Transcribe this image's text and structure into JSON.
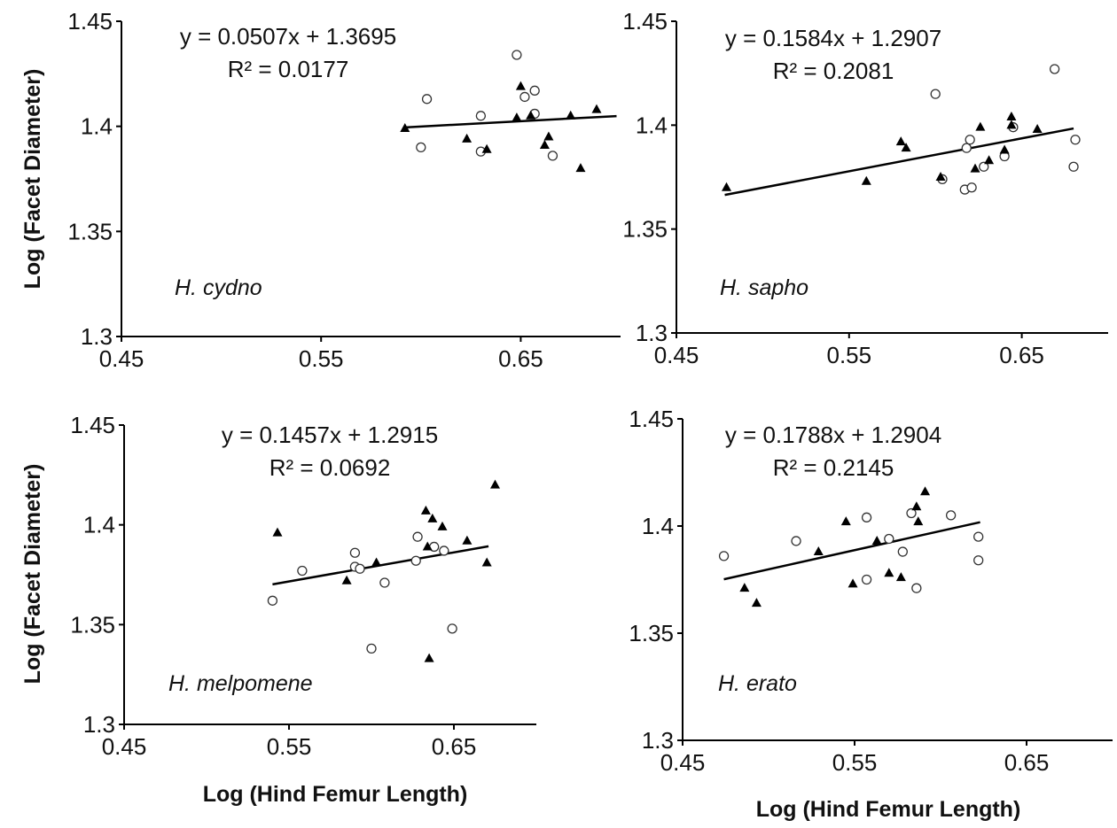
{
  "chart_data": [
    {
      "type": "scatter",
      "species_label": "H. cydno",
      "equation": "y = 0.0507x + 1.3695",
      "r2": "R² = 0.0177",
      "slope": 0.0507,
      "intercept": 1.3695,
      "fit_x_range": [
        0.592,
        0.698
      ],
      "xlim": [
        0.45,
        0.7
      ],
      "ylim": [
        1.3,
        1.45
      ],
      "x_ticks": [
        "0.45",
        "0.55",
        "0.65"
      ],
      "y_ticks": [
        "1.3",
        "1.35",
        "1.4",
        "1.45"
      ],
      "ylabel": "Log (Facet Diameter)",
      "xlabel": "",
      "series": [
        {
          "marker": "open-circle",
          "points": [
            [
              0.6,
              1.39
            ],
            [
              0.603,
              1.413
            ],
            [
              0.63,
              1.405
            ],
            [
              0.63,
              1.388
            ],
            [
              0.648,
              1.434
            ],
            [
              0.652,
              1.414
            ],
            [
              0.657,
              1.417
            ],
            [
              0.657,
              1.406
            ],
            [
              0.666,
              1.386
            ]
          ]
        },
        {
          "marker": "filled-triangle",
          "points": [
            [
              0.592,
              1.399
            ],
            [
              0.623,
              1.394
            ],
            [
              0.633,
              1.389
            ],
            [
              0.648,
              1.404
            ],
            [
              0.65,
              1.419
            ],
            [
              0.655,
              1.405
            ],
            [
              0.662,
              1.391
            ],
            [
              0.664,
              1.395
            ],
            [
              0.675,
              1.405
            ],
            [
              0.68,
              1.38
            ],
            [
              0.688,
              1.408
            ]
          ]
        }
      ]
    },
    {
      "type": "scatter",
      "species_label": "H. sapho",
      "equation": "y = 0.1584x + 1.2907",
      "r2": "R² = 0.2081",
      "slope": 0.1584,
      "intercept": 1.2907,
      "fit_x_range": [
        0.478,
        0.68
      ],
      "xlim": [
        0.45,
        0.7
      ],
      "ylim": [
        1.3,
        1.45
      ],
      "x_ticks": [
        "0.45",
        "0.55",
        "0.65"
      ],
      "y_ticks": [
        "1.3",
        "1.35",
        "1.4",
        "1.45"
      ],
      "ylabel": "",
      "xlabel": "",
      "series": [
        {
          "marker": "open-circle",
          "points": [
            [
              0.6,
              1.415
            ],
            [
              0.604,
              1.374
            ],
            [
              0.617,
              1.369
            ],
            [
              0.618,
              1.389
            ],
            [
              0.62,
              1.393
            ],
            [
              0.621,
              1.37
            ],
            [
              0.628,
              1.38
            ],
            [
              0.64,
              1.385
            ],
            [
              0.645,
              1.399
            ],
            [
              0.669,
              1.427
            ],
            [
              0.68,
              1.38
            ],
            [
              0.681,
              1.393
            ]
          ]
        },
        {
          "marker": "filled-triangle",
          "points": [
            [
              0.479,
              1.37
            ],
            [
              0.56,
              1.373
            ],
            [
              0.58,
              1.392
            ],
            [
              0.583,
              1.389
            ],
            [
              0.603,
              1.375
            ],
            [
              0.623,
              1.379
            ],
            [
              0.626,
              1.399
            ],
            [
              0.631,
              1.383
            ],
            [
              0.64,
              1.388
            ],
            [
              0.644,
              1.404
            ],
            [
              0.644,
              1.4
            ],
            [
              0.659,
              1.398
            ]
          ]
        }
      ]
    },
    {
      "type": "scatter",
      "species_label": "H. melpomene",
      "equation": "y = 0.1457x + 1.2915",
      "r2": "R² = 0.0692",
      "slope": 0.1457,
      "intercept": 1.2915,
      "fit_x_range": [
        0.54,
        0.671
      ],
      "xlim": [
        0.45,
        0.7
      ],
      "ylim": [
        1.3,
        1.45
      ],
      "x_ticks": [
        "0.45",
        "0.55",
        "0.65"
      ],
      "y_ticks": [
        "1.3",
        "1.35",
        "1.4",
        "1.45"
      ],
      "ylabel": "Log (Facet Diameter)",
      "xlabel": "Log (Hind Femur Length)",
      "series": [
        {
          "marker": "open-circle",
          "points": [
            [
              0.54,
              1.362
            ],
            [
              0.558,
              1.377
            ],
            [
              0.59,
              1.379
            ],
            [
              0.59,
              1.386
            ],
            [
              0.593,
              1.378
            ],
            [
              0.6,
              1.338
            ],
            [
              0.608,
              1.371
            ],
            [
              0.627,
              1.382
            ],
            [
              0.628,
              1.394
            ],
            [
              0.638,
              1.389
            ],
            [
              0.644,
              1.387
            ],
            [
              0.649,
              1.348
            ]
          ]
        },
        {
          "marker": "filled-triangle",
          "points": [
            [
              0.543,
              1.396
            ],
            [
              0.585,
              1.372
            ],
            [
              0.603,
              1.381
            ],
            [
              0.633,
              1.407
            ],
            [
              0.634,
              1.389
            ],
            [
              0.635,
              1.333
            ],
            [
              0.637,
              1.403
            ],
            [
              0.643,
              1.399
            ],
            [
              0.658,
              1.392
            ],
            [
              0.67,
              1.381
            ],
            [
              0.675,
              1.42
            ]
          ]
        }
      ]
    },
    {
      "type": "scatter",
      "species_label": "H. erato",
      "equation": "y = 0.1788x + 1.2904",
      "r2": "R² = 0.2145",
      "slope": 0.1788,
      "intercept": 1.2904,
      "fit_x_range": [
        0.474,
        0.623
      ],
      "xlim": [
        0.45,
        0.7
      ],
      "ylim": [
        1.3,
        1.45
      ],
      "x_ticks": [
        "0.45",
        "0.55",
        "0.65"
      ],
      "y_ticks": [
        "1.3",
        "1.35",
        "1.4",
        "1.45"
      ],
      "ylabel": "",
      "xlabel": "Log (Hind Femur Length)",
      "series": [
        {
          "marker": "open-circle",
          "points": [
            [
              0.474,
              1.386
            ],
            [
              0.516,
              1.393
            ],
            [
              0.557,
              1.375
            ],
            [
              0.557,
              1.404
            ],
            [
              0.57,
              1.394
            ],
            [
              0.578,
              1.388
            ],
            [
              0.583,
              1.406
            ],
            [
              0.586,
              1.371
            ],
            [
              0.606,
              1.405
            ],
            [
              0.622,
              1.395
            ],
            [
              0.622,
              1.384
            ]
          ]
        },
        {
          "marker": "filled-triangle",
          "points": [
            [
              0.486,
              1.371
            ],
            [
              0.493,
              1.364
            ],
            [
              0.529,
              1.388
            ],
            [
              0.545,
              1.402
            ],
            [
              0.549,
              1.373
            ],
            [
              0.563,
              1.393
            ],
            [
              0.57,
              1.378
            ],
            [
              0.577,
              1.376
            ],
            [
              0.586,
              1.409
            ],
            [
              0.587,
              1.402
            ],
            [
              0.591,
              1.416
            ]
          ]
        }
      ]
    }
  ]
}
